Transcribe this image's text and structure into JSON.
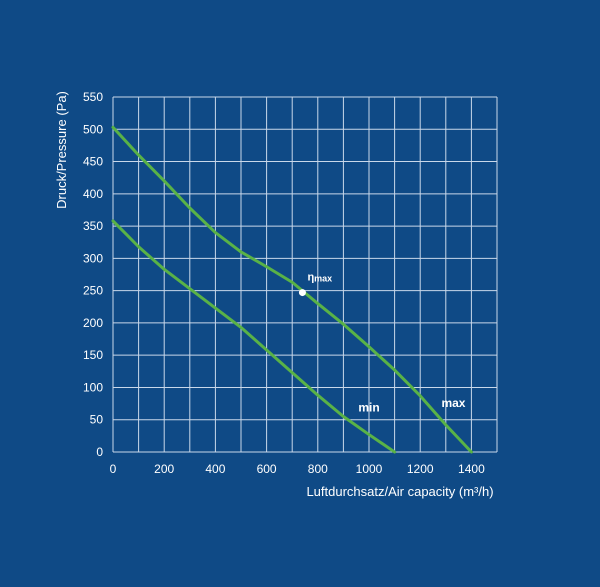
{
  "colors": {
    "background": "#0f4a86",
    "grid": "#c9d8ea",
    "axis_text": "#ffffff",
    "curve": "#59b247",
    "point": "#ffffff"
  },
  "chart_data": {
    "type": "line",
    "title": "",
    "xlabel": "Luftdurchsatz/Air capacity (m³/h)",
    "ylabel": "Druck/Pressure (Pa)",
    "xlim": [
      0,
      1500
    ],
    "ylim": [
      0,
      550
    ],
    "x_ticks": [
      0,
      200,
      400,
      600,
      800,
      1000,
      1200,
      1400
    ],
    "y_ticks": [
      0,
      50,
      100,
      150,
      200,
      250,
      300,
      350,
      400,
      450,
      500,
      550
    ],
    "x_tick_labels": [
      "0",
      "200",
      "400",
      "600",
      "800",
      "1000",
      "1200",
      "1400"
    ],
    "y_tick_labels": [
      "0",
      "50",
      "100",
      "150",
      "200",
      "250",
      "300",
      "350",
      "400",
      "450",
      "500",
      "550"
    ],
    "grid": true,
    "legend": "none",
    "series": [
      {
        "name": "max",
        "label": "max",
        "points": [
          {
            "x": 0,
            "y": 503
          },
          {
            "x": 100,
            "y": 460
          },
          {
            "x": 200,
            "y": 420
          },
          {
            "x": 300,
            "y": 378
          },
          {
            "x": 400,
            "y": 340
          },
          {
            "x": 500,
            "y": 310
          },
          {
            "x": 600,
            "y": 287
          },
          {
            "x": 700,
            "y": 263
          },
          {
            "x": 800,
            "y": 230
          },
          {
            "x": 900,
            "y": 198
          },
          {
            "x": 1000,
            "y": 163
          },
          {
            "x": 1100,
            "y": 127
          },
          {
            "x": 1200,
            "y": 87
          },
          {
            "x": 1300,
            "y": 42
          },
          {
            "x": 1400,
            "y": 0
          }
        ]
      },
      {
        "name": "min",
        "label": "min",
        "points": [
          {
            "x": 0,
            "y": 358
          },
          {
            "x": 100,
            "y": 318
          },
          {
            "x": 200,
            "y": 283
          },
          {
            "x": 300,
            "y": 253
          },
          {
            "x": 400,
            "y": 223
          },
          {
            "x": 500,
            "y": 193
          },
          {
            "x": 600,
            "y": 158
          },
          {
            "x": 700,
            "y": 123
          },
          {
            "x": 800,
            "y": 88
          },
          {
            "x": 900,
            "y": 55
          },
          {
            "x": 1000,
            "y": 27
          },
          {
            "x": 1100,
            "y": 0
          }
        ]
      }
    ],
    "annotations": [
      {
        "id": "eta-max",
        "text_main": "η",
        "text_sub": "max",
        "x": 740,
        "y": 247
      }
    ]
  }
}
